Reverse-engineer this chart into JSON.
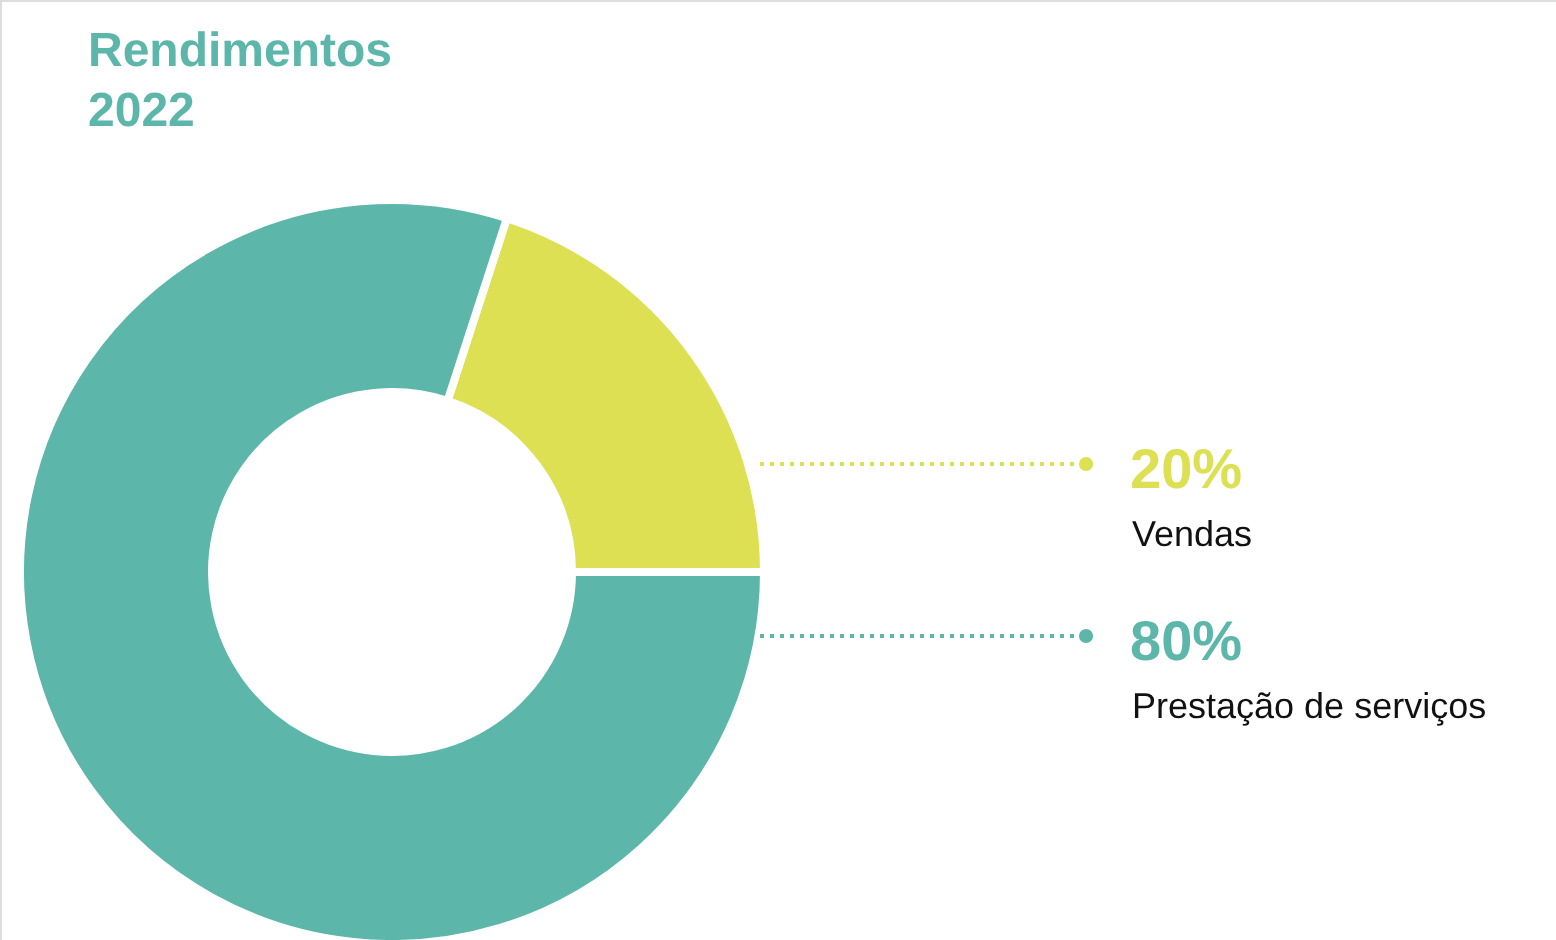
{
  "chart_data": {
    "type": "donut",
    "title": "Rendimentos 2022",
    "categories": [
      "Vendas",
      "Prestação de serviços"
    ],
    "values": [
      20,
      80
    ],
    "value_labels": [
      "20%",
      "80%"
    ],
    "colors": [
      "#dde052",
      "#5cb6aa"
    ]
  }
}
